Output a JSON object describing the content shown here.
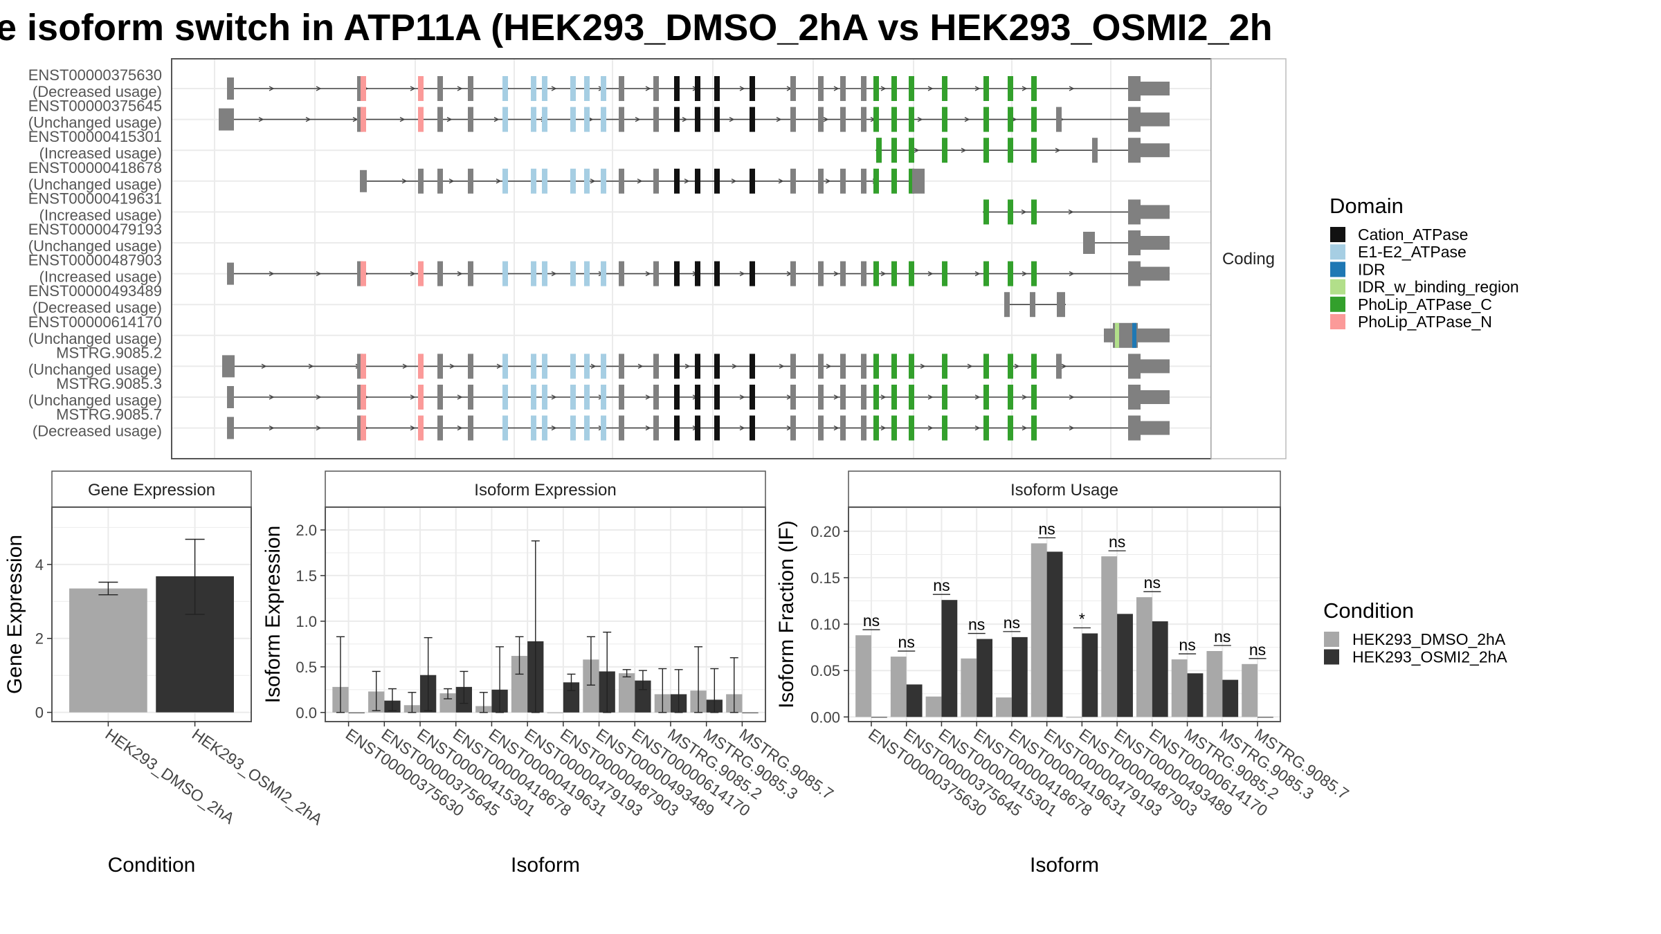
{
  "title": "e isoform switch in ATP11A (HEK293_DMSO_2hA vs HEK293_OSMI2_2h",
  "colors": {
    "cond1": "#a8a8a8",
    "cond2": "#333333",
    "exon": "#808080",
    "intron": "#444444",
    "panel_bg": "#ffffff",
    "grid": "#ebebeb",
    "border": "#555555",
    "strip_bg": "#ffffff"
  },
  "chart_data": [
    {
      "type": "gene-structure",
      "strip_label": "Coding",
      "transcripts": [
        {
          "id": "ENST00000375630",
          "usage": "(Decreased usage)"
        },
        {
          "id": "ENST00000375645",
          "usage": "(Unchanged usage)"
        },
        {
          "id": "ENST00000415301",
          "usage": "(Increased usage)"
        },
        {
          "id": "ENST00000418678",
          "usage": "(Unchanged usage)"
        },
        {
          "id": "ENST00000419631",
          "usage": "(Increased usage)"
        },
        {
          "id": "ENST00000479193",
          "usage": "(Unchanged usage)"
        },
        {
          "id": "ENST00000487903",
          "usage": "(Increased usage)"
        },
        {
          "id": "ENST00000493489",
          "usage": "(Decreased usage)"
        },
        {
          "id": "ENST00000614170",
          "usage": "(Unchanged usage)"
        },
        {
          "id": "MSTRG.9085.2",
          "usage": "(Unchanged usage)"
        },
        {
          "id": "MSTRG.9085.3",
          "usage": "(Unchanged usage)"
        },
        {
          "id": "MSTRG.9085.7",
          "usage": "(Decreased usage)"
        }
      ],
      "legend": {
        "title": "Domain",
        "items": [
          {
            "name": "Cation_ATPase",
            "color": "#111111"
          },
          {
            "name": "E1-E2_ATPase",
            "color": "#a6cee3"
          },
          {
            "name": "IDR",
            "color": "#1f78b4"
          },
          {
            "name": "IDR_w_binding_region",
            "color": "#b2df8a"
          },
          {
            "name": "PhoLip_ATPase_C",
            "color": "#33a02c"
          },
          {
            "name": "PhoLip_ATPase_N",
            "color": "#fb9a99"
          }
        ]
      }
    },
    {
      "type": "bar",
      "strip_label": "Gene Expression",
      "xlabel": "Condition",
      "ylabel": "Gene Expression",
      "categories": [
        "HEK293_DMSO_2hA",
        "HEK293_OSMI2_2hA"
      ],
      "values": [
        3.35,
        3.68
      ],
      "error": [
        [
          3.18,
          3.52
        ],
        [
          2.65,
          4.68
        ]
      ],
      "ylim": [
        -0.25,
        5.55
      ],
      "yticks": [
        "0",
        "2",
        "4"
      ]
    },
    {
      "type": "bar",
      "strip_label": "Isoform Expression",
      "xlabel": "Isoform",
      "ylabel": "Isoform Expression",
      "categories": [
        "ENST00000375630",
        "ENST00000375645",
        "ENST00000415301",
        "ENST00000418678",
        "ENST00000419631",
        "ENST00000479193",
        "ENST00000487903",
        "ENST00000493489",
        "ENST00000614170",
        "MSTRG.9085.2",
        "MSTRG.9085.3",
        "MSTRG.9085.7"
      ],
      "ylim": [
        -0.1,
        2.25
      ],
      "yticks": [
        "0.0",
        "0.5",
        "1.0",
        "1.5",
        "2.0"
      ],
      "series": [
        {
          "name": "HEK293_DMSO_2hA",
          "values": [
            0.28,
            0.23,
            0.08,
            0.21,
            0.07,
            0.62,
            0.0,
            0.58,
            0.43,
            0.2,
            0.24,
            0.2
          ],
          "error": [
            [
              0.0,
              0.83
            ],
            [
              0.02,
              0.45
            ],
            [
              0.0,
              0.22
            ],
            [
              0.15,
              0.26
            ],
            [
              0.0,
              0.22
            ],
            [
              0.42,
              0.83
            ],
            null,
            [
              0.3,
              0.83
            ],
            [
              0.39,
              0.47
            ],
            [
              0.0,
              0.48
            ],
            [
              0.0,
              0.72
            ],
            [
              0.0,
              0.6
            ]
          ]
        },
        {
          "name": "HEK293_OSMI2_2hA",
          "values": [
            0.0,
            0.13,
            0.41,
            0.28,
            0.25,
            0.78,
            0.33,
            0.45,
            0.35,
            0.2,
            0.14,
            0.0
          ],
          "error": [
            null,
            [
              0.02,
              0.26
            ],
            [
              0.02,
              0.82
            ],
            [
              0.1,
              0.45
            ],
            [
              0.0,
              0.72
            ],
            [
              0.0,
              1.88
            ],
            [
              0.24,
              0.42
            ],
            [
              0.0,
              0.88
            ],
            [
              0.25,
              0.46
            ],
            [
              0.0,
              0.47
            ],
            [
              0.0,
              0.48
            ],
            null
          ]
        }
      ]
    },
    {
      "type": "bar",
      "strip_label": "Isoform Usage",
      "xlabel": "Isoform",
      "ylabel": "Isoform Fraction (IF)",
      "categories": [
        "ENST00000375630",
        "ENST00000375645",
        "ENST00000415301",
        "ENST00000418678",
        "ENST00000419631",
        "ENST00000479193",
        "ENST00000487903",
        "ENST00000493489",
        "ENST00000614170",
        "MSTRG.9085.2",
        "MSTRG.9085.3",
        "MSTRG.9085.7"
      ],
      "ylim": [
        -0.005,
        0.226
      ],
      "yticks": [
        "0.00",
        "0.05",
        "0.10",
        "0.15",
        "0.20"
      ],
      "significance": [
        "ns",
        "ns",
        "ns",
        "ns",
        "ns",
        "ns",
        "*",
        "ns",
        "ns",
        "ns",
        "ns",
        "ns"
      ],
      "series": [
        {
          "name": "HEK293_DMSO_2hA",
          "values": [
            0.088,
            0.065,
            0.022,
            0.063,
            0.021,
            0.187,
            0.0,
            0.173,
            0.129,
            0.062,
            0.071,
            0.057
          ]
        },
        {
          "name": "HEK293_OSMI2_2hA",
          "values": [
            0.0,
            0.035,
            0.126,
            0.084,
            0.086,
            0.178,
            0.09,
            0.111,
            0.103,
            0.047,
            0.04,
            0.0
          ]
        }
      ]
    }
  ],
  "legend_condition": {
    "title": "Condition",
    "items": [
      "HEK293_DMSO_2hA",
      "HEK293_OSMI2_2hA"
    ]
  }
}
